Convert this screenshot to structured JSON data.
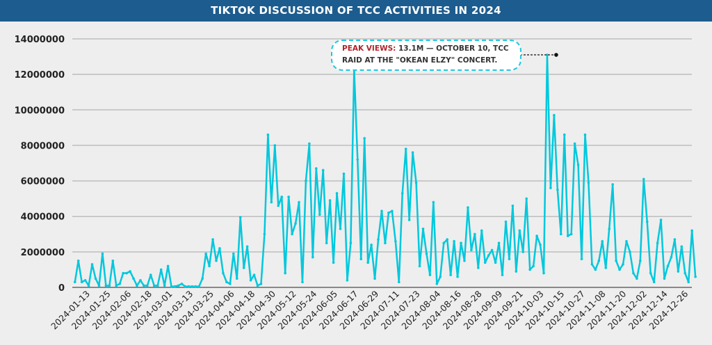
{
  "chart_data": {
    "type": "line",
    "title": "TIKTOK DISCUSSION OF TCC ACTIVITIES IN 2024",
    "xlabel": "",
    "ylabel": "",
    "ylim": [
      0,
      14000000
    ],
    "yticks": [
      "0",
      "2000000",
      "4000000",
      "6000000",
      "8000000",
      "10000000",
      "12000000",
      "14000000"
    ],
    "xticks": [
      "2024-01-13",
      "2024-01-25",
      "2024-02-06",
      "2024-02-18",
      "2024-03-01",
      "2024-03-13",
      "2024-03-25",
      "2024-04-06",
      "2024-04-18",
      "2024-04-30",
      "2024-05-12",
      "2024-05-24",
      "2024-06-05",
      "2024-06-17",
      "2024-06-29",
      "2024-07-11",
      "2024-07-23",
      "2024-08-04",
      "2024-08-16",
      "2024-08-28",
      "2024-09-09",
      "2024-09-21",
      "2024-10-03",
      "2024-10-15",
      "2024-10-27",
      "2024-11-08",
      "2024-11-20",
      "2024-12-02",
      "2024-12-14",
      "2024-12-26"
    ],
    "grid": true,
    "x_start": "2024-01-04",
    "x_end": "2024-12-30",
    "unit_multiplier": 1000000,
    "series": [
      {
        "name": "Views",
        "color": "#00c8dc",
        "values": [
          0.3,
          1.5,
          0.3,
          0.4,
          0.1,
          1.3,
          0.5,
          0.1,
          1.9,
          0.1,
          0.1,
          1.5,
          0.1,
          0.2,
          0.8,
          0.8,
          0.9,
          0.5,
          0.1,
          0.4,
          0.1,
          0.1,
          0.7,
          0.1,
          0.1,
          1.0,
          0.1,
          1.2,
          0.05,
          0.05,
          0.1,
          0.2,
          0.05,
          0.05,
          0.05,
          0.05,
          0.05,
          0.5,
          1.9,
          1.2,
          2.7,
          1.5,
          2.2,
          0.8,
          0.3,
          0.2,
          1.9,
          0.5,
          3.95,
          1.1,
          2.3,
          0.4,
          0.7,
          0.1,
          0.2,
          3.0,
          8.6,
          4.8,
          8.0,
          4.6,
          5.1,
          0.8,
          5.1,
          3.0,
          3.6,
          4.8,
          0.3,
          6.0,
          8.1,
          1.7,
          6.7,
          4.1,
          6.6,
          2.5,
          4.9,
          1.4,
          5.3,
          3.3,
          6.4,
          0.4,
          2.5,
          12.3,
          7.2,
          1.6,
          8.4,
          1.4,
          2.4,
          0.5,
          2.7,
          4.3,
          2.5,
          4.2,
          4.3,
          2.6,
          0.3,
          5.3,
          7.8,
          3.8,
          7.6,
          5.9,
          1.2,
          3.3,
          1.9,
          0.7,
          4.8,
          0.2,
          0.6,
          2.5,
          2.7,
          0.7,
          2.6,
          0.6,
          2.5,
          1.5,
          4.5,
          2.1,
          3.0,
          1.1,
          3.2,
          1.4,
          1.8,
          2.1,
          1.4,
          2.5,
          0.7,
          3.7,
          1.6,
          4.6,
          0.9,
          3.2,
          2.0,
          5.0,
          1.0,
          1.2,
          2.9,
          2.4,
          0.8,
          13.1,
          5.6,
          9.7,
          5.5,
          3.0,
          8.6,
          2.9,
          3.0,
          8.1,
          6.9,
          1.6,
          8.6,
          5.9,
          1.3,
          1.0,
          1.5,
          2.6,
          1.1,
          3.3,
          5.8,
          1.5,
          1.0,
          1.3,
          2.6,
          2.0,
          0.8,
          0.5,
          1.5,
          6.1,
          3.7,
          0.8,
          0.3,
          2.5,
          3.8,
          0.5,
          1.2,
          1.7,
          2.7,
          0.9,
          2.3,
          0.8,
          0.3,
          3.2,
          0.6
        ]
      }
    ],
    "annotation": {
      "label": "PEAK VIEWS:",
      "text_line1": "13.1M — OCTOBER 10, TCC",
      "text_line2": "RAID AT THE \"OKEAN ELZY\" CONCERT.",
      "date": "2024-10-10",
      "value": 13100000
    }
  }
}
